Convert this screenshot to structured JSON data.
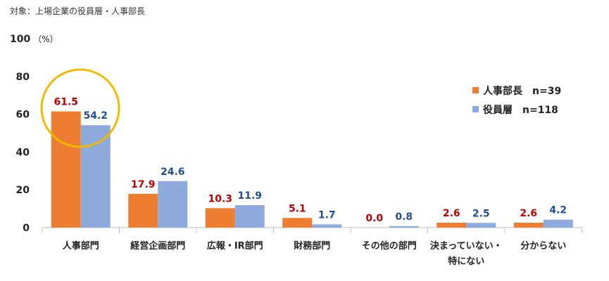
{
  "chart_data": {
    "type": "bar",
    "subtitle": "対象：上場企業の役員層・人事部長",
    "y_unit": "（%）",
    "ylim": [
      0,
      100
    ],
    "y_ticks": [
      0,
      20,
      40,
      60,
      80,
      100
    ],
    "grid": false,
    "legend_position": "right",
    "categories": [
      [
        "人事部門"
      ],
      [
        "経営企画部門"
      ],
      [
        "広報・IR部門"
      ],
      [
        "財務部門"
      ],
      [
        "その他の部門"
      ],
      [
        "決まっていない・",
        "特にない"
      ],
      [
        "分からない"
      ]
    ],
    "series": [
      {
        "name": "人事部長　n=39",
        "color": "#ED7D31",
        "label_color": "#C00000",
        "values": [
          61.5,
          17.9,
          10.3,
          5.1,
          0.0,
          2.6,
          2.6
        ],
        "labels": [
          "61.5",
          "17.9",
          "10.3",
          "5.1",
          "0.0",
          "2.6",
          "2.6"
        ]
      },
      {
        "name": "役員層　n=118",
        "color": "#8EA9DB",
        "label_color": "#1F4E99",
        "values": [
          54.2,
          24.6,
          11.9,
          1.7,
          0.8,
          2.5,
          4.2
        ],
        "labels": [
          "54.2",
          "24.6",
          "11.9",
          "1.7",
          "0.8",
          "2.5",
          "4.2"
        ]
      }
    ],
    "highlight_color": "#F5B800"
  }
}
